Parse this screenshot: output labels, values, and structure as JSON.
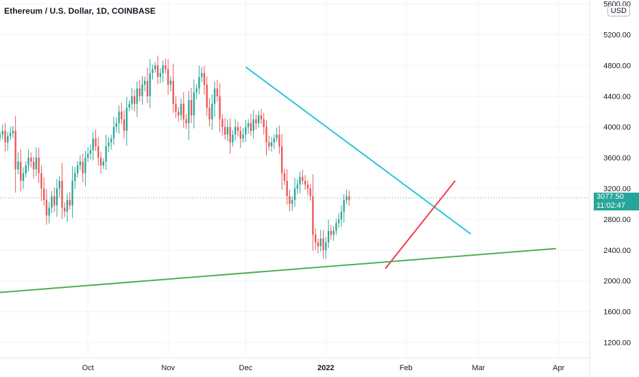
{
  "header": {
    "title": "Ethereum / U.S. Dollar, 1D, COINBASE",
    "currency": "USD"
  },
  "last_price": {
    "value": "3077.50",
    "countdown": "11:02:47",
    "color": "#26a69a"
  },
  "colors": {
    "up": "#26a69a",
    "down": "#ef5350",
    "grid": "#f0f3fa",
    "trend_down": "#26c6da",
    "trend_up": "#f23645",
    "trend_support": "#4caf50"
  },
  "chart_data": {
    "type": "candlestick",
    "y_axis": {
      "ticks": [
        5600,
        5200,
        4800,
        4400,
        4000,
        3600,
        3200,
        2800,
        2400,
        2000,
        1600,
        1200
      ],
      "tick_labels": [
        "5600.00",
        "5200.00",
        "4800.00",
        "4400.00",
        "4000.00",
        "3600.00",
        "3200.00",
        "2800.00",
        "2400.00",
        "2000.00",
        "1600.00",
        "1200.00"
      ],
      "range": [
        1000,
        5650
      ]
    },
    "x_axis": {
      "ticks": [
        {
          "label": "Oct",
          "date": "2021-10-01"
        },
        {
          "label": "Nov",
          "date": "2021-11-01"
        },
        {
          "label": "Dec",
          "date": "2021-12-01"
        },
        {
          "label": "2022",
          "date": "2022-01-01"
        },
        {
          "label": "Feb",
          "date": "2022-02-01"
        },
        {
          "label": "Mar",
          "date": "2022-03-01"
        },
        {
          "label": "Apr",
          "date": "2022-04-01"
        }
      ],
      "range": [
        "2021-08-28",
        "2022-04-13"
      ]
    },
    "candles": {
      "start_date": "2021-08-28",
      "closes": [
        3900,
        3950,
        3800,
        3880,
        3920,
        3950,
        3450,
        3550,
        3300,
        3400,
        3500,
        3600,
        3550,
        3450,
        3600,
        3400,
        3200,
        3050,
        2850,
        2950,
        3100,
        2980,
        3200,
        3300,
        2950,
        2900,
        3050,
        2980,
        3300,
        3400,
        3500,
        3550,
        3400,
        3600,
        3650,
        3700,
        3850,
        3750,
        3600,
        3500,
        3550,
        3750,
        3800,
        3850,
        4000,
        4050,
        4200,
        4100,
        3950,
        4250,
        4300,
        4400,
        4300,
        4500,
        4400,
        4550,
        4600,
        4400,
        4700,
        4750,
        4800,
        4650,
        4700,
        4800,
        4750,
        4550,
        4600,
        4300,
        4200,
        4150,
        4300,
        4100,
        4050,
        4350,
        4150,
        4450,
        4500,
        4650,
        4700,
        4550,
        4250,
        4100,
        4300,
        4500,
        4400,
        4100,
        4000,
        3900,
        4000,
        3800,
        3900,
        4000,
        3950,
        3850,
        3900,
        4000,
        4050,
        3950,
        4100,
        4050,
        4150,
        4100,
        4000,
        3800,
        3750,
        3800,
        3850,
        3900,
        3750,
        3400,
        3300,
        3100,
        3000,
        3050,
        3200,
        3250,
        3350,
        3300,
        3250,
        3200,
        3100,
        2600,
        2500,
        2450,
        2550,
        2400,
        2500,
        2650,
        2600,
        2650,
        2750,
        2800,
        2900,
        3050,
        3100,
        3050
      ],
      "last": 3077.5
    },
    "trendlines": [
      {
        "name": "",
        "color": "#26c6da",
        "from": [
          "2021-12-01",
          4780
        ],
        "to": [
          "2022-02-26",
          2610
        ]
      },
      {
        "name": "",
        "color": "#f23645",
        "from": [
          "2022-01-24",
          2160
        ],
        "to": [
          "2022-02-20",
          3300
        ]
      },
      {
        "name": "",
        "color": "#4caf50",
        "from": [
          "2021-08-28",
          1850
        ],
        "to": [
          "2022-03-31",
          2420
        ]
      }
    ],
    "grid": true
  }
}
